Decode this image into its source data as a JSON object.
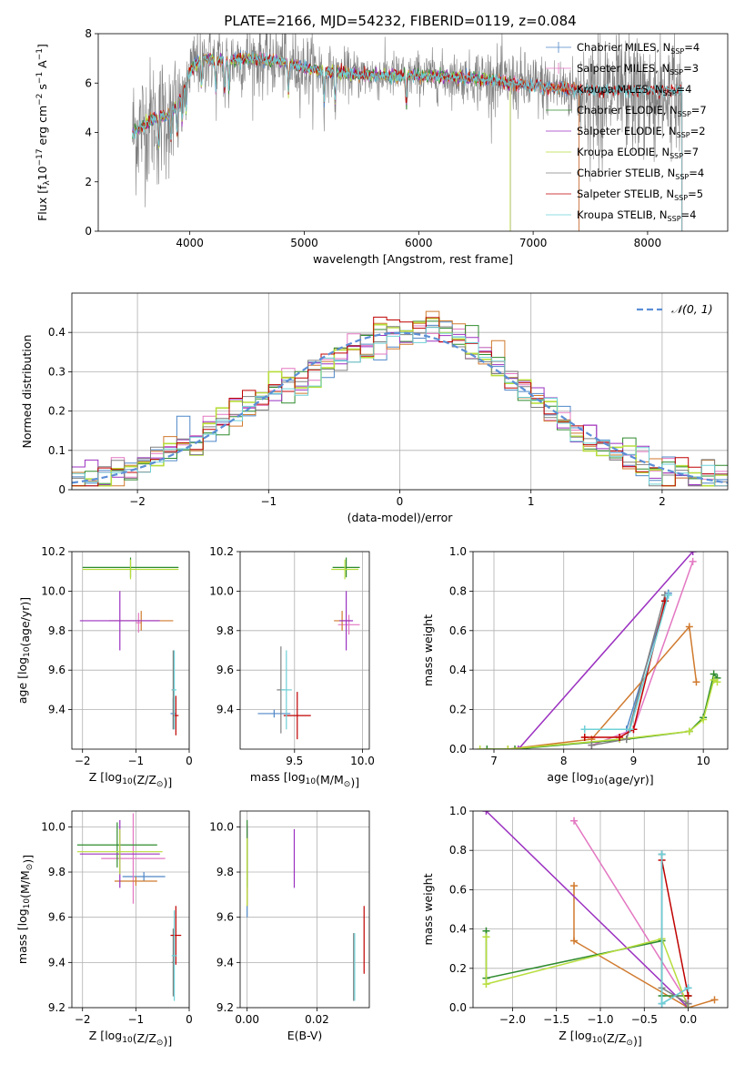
{
  "figure": {
    "title": "PLATE=2166, MJD=54232, FIBERID=0119, z=0.084"
  },
  "colors": {
    "chabrier_miles": "#4f87c7",
    "salpeter_miles": "#e377c2",
    "kroupa_miles": "#d07a2e",
    "chabrier_elodie": "#2e8b2e",
    "salpeter_elodie": "#9b30c0",
    "kroupa_elodie": "#b7dd3c",
    "chabrier_stelib": "#808080",
    "salpeter_stelib": "#c00000",
    "kroupa_stelib": "#6ed0d6",
    "normal": "#5b8ed6"
  },
  "chart_data": [
    {
      "type": "line",
      "xlabel": "wavelength [Angstrom, rest frame]",
      "ylabel": "Flux [f_λ 10^-17 erg cm^-2 s^-1 A^-1]",
      "xlim": [
        3200,
        8700
      ],
      "ylim": [
        0,
        8
      ],
      "xticks": [
        4000,
        5000,
        6000,
        7000,
        8000
      ],
      "yticks": [
        0,
        2,
        4,
        6,
        8
      ],
      "grid": false,
      "legend_position": "top-right",
      "series": [
        {
          "name": "Chabrier MILES, N_SSP=4",
          "key": "chabrier_miles"
        },
        {
          "name": "Salpeter MILES, N_SSP=3",
          "key": "salpeter_miles"
        },
        {
          "name": "Kroupa MILES, N_SSP=4",
          "key": "kroupa_miles"
        },
        {
          "name": "Chabrier ELODIE, N_SSP=7",
          "key": "chabrier_elodie"
        },
        {
          "name": "Salpeter ELODIE, N_SSP=2",
          "key": "salpeter_elodie"
        },
        {
          "name": "Kroupa ELODIE, N_SSP=7",
          "key": "kroupa_elodie"
        },
        {
          "name": "Chabrier STELIB, N_SSP=4",
          "key": "chabrier_stelib"
        },
        {
          "name": "Salpeter STELIB, N_SSP=5",
          "key": "salpeter_stelib"
        },
        {
          "name": "Kroupa STELIB, N_SSP=4",
          "key": "kroupa_stelib"
        }
      ],
      "continuum": {
        "x": [
          3500,
          3600,
          3700,
          3800,
          3900,
          4000,
          4100,
          4300,
          4500,
          4800,
          5000,
          5300,
          5600,
          6000,
          6500,
          7000,
          7400
        ],
        "y": [
          4.0,
          4.3,
          4.6,
          4.7,
          5.2,
          6.5,
          7.0,
          6.9,
          7.0,
          6.9,
          6.6,
          6.4,
          6.3,
          6.3,
          6.2,
          5.9,
          5.7
        ]
      },
      "model_ranges": {
        "elodie": [
          3500,
          6800
        ],
        "miles": [
          3500,
          7400
        ],
        "stelib": [
          3500,
          8300
        ]
      }
    },
    {
      "type": "line",
      "xlabel": "(data-model)/error",
      "ylabel": "Normed distribution",
      "xlim": [
        -2.5,
        2.5
      ],
      "ylim": [
        0,
        0.5
      ],
      "xticks": [
        -2,
        -1,
        0,
        1,
        2
      ],
      "yticks": [
        0.0,
        0.1,
        0.2,
        0.3,
        0.4
      ],
      "grid": true,
      "legend_position": "top-right",
      "legend_label": "𝒩(0, 1)",
      "histogram_bins": [
        -2.5,
        2.5,
        0.1
      ]
    },
    {
      "type": "scatter",
      "xlabel": "Z [log10(Z/Z⊙)]",
      "ylabel": "age  [log10(age/yr)]",
      "xlim": [
        -2.2,
        0.0
      ],
      "ylim": [
        9.2,
        10.2
      ],
      "xticks": [
        -2,
        -1,
        0
      ],
      "yticks": [
        9.4,
        9.6,
        9.8,
        10.0,
        10.2
      ],
      "grid": true,
      "points": [
        {
          "key": "chabrier_miles",
          "x": -0.3,
          "y": 9.38,
          "xerr": 0.05,
          "yerr": 0.08
        },
        {
          "key": "salpeter_miles",
          "x": -0.95,
          "y": 9.84,
          "xerr": 0.05,
          "yerr": 0.05
        },
        {
          "key": "kroupa_miles",
          "x": -0.9,
          "y": 9.85,
          "xerr": 0.6,
          "yerr": 0.05
        },
        {
          "key": "chabrier_elodie",
          "x": -1.1,
          "y": 10.12,
          "xerr": 0.9,
          "yerr": 0.05
        },
        {
          "key": "salpeter_elodie",
          "x": -1.3,
          "y": 9.85,
          "xerr": 0.75,
          "yerr": 0.15
        },
        {
          "key": "kroupa_elodie",
          "x": -1.1,
          "y": 10.11,
          "xerr": 0.9,
          "yerr": 0.05
        },
        {
          "key": "chabrier_stelib",
          "x": -0.3,
          "y": 9.5,
          "xerr": 0.03,
          "yerr": 0.2
        },
        {
          "key": "salpeter_stelib",
          "x": -0.25,
          "y": 9.37,
          "xerr": 0.05,
          "yerr": 0.1
        },
        {
          "key": "kroupa_stelib",
          "x": -0.28,
          "y": 9.5,
          "xerr": 0.04,
          "yerr": 0.2
        }
      ]
    },
    {
      "type": "scatter",
      "xlabel": "mass [log10(M/M⊙)]",
      "ylabel": "",
      "xlim": [
        9.1,
        10.05
      ],
      "ylim": [
        9.2,
        10.2
      ],
      "xticks": [
        9.5,
        10.0
      ],
      "yticks": [
        9.4,
        9.6,
        9.8,
        10.0,
        10.2
      ],
      "grid": true,
      "points": [
        {
          "key": "chabrier_miles",
          "x": 9.35,
          "y": 9.38,
          "xerr": 0.12,
          "yerr": 0.02
        },
        {
          "key": "salpeter_miles",
          "x": 9.9,
          "y": 9.83,
          "xerr": 0.08,
          "yerr": 0.05
        },
        {
          "key": "kroupa_miles",
          "x": 9.85,
          "y": 9.85,
          "xerr": 0.06,
          "yerr": 0.05
        },
        {
          "key": "chabrier_elodie",
          "x": 9.88,
          "y": 10.12,
          "xerr": 0.1,
          "yerr": 0.05
        },
        {
          "key": "salpeter_elodie",
          "x": 9.88,
          "y": 9.85,
          "xerr": 0.05,
          "yerr": 0.15
        },
        {
          "key": "kroupa_elodie",
          "x": 9.87,
          "y": 10.11,
          "xerr": 0.1,
          "yerr": 0.05
        },
        {
          "key": "chabrier_stelib",
          "x": 9.4,
          "y": 9.5,
          "xerr": 0.03,
          "yerr": 0.22
        },
        {
          "key": "salpeter_stelib",
          "x": 9.52,
          "y": 9.37,
          "xerr": 0.1,
          "yerr": 0.12
        },
        {
          "key": "kroupa_stelib",
          "x": 9.44,
          "y": 9.5,
          "xerr": 0.04,
          "yerr": 0.2
        }
      ]
    },
    {
      "type": "line",
      "xlabel": "age  [log10(age/yr)]",
      "ylabel": "mass weight",
      "xlim": [
        6.7,
        10.35
      ],
      "ylim": [
        0,
        1.0
      ],
      "xticks": [
        7,
        8,
        9,
        10
      ],
      "yticks": [
        0.0,
        0.2,
        0.4,
        0.6,
        0.8,
        1.0
      ],
      "grid": true,
      "series": [
        {
          "key": "chabrier_miles",
          "x": [
            8.3,
            8.9,
            9.5
          ],
          "y": [
            0.1,
            0.1,
            0.79
          ]
        },
        {
          "key": "salpeter_miles",
          "x": [
            8.4,
            9.0,
            9.85
          ],
          "y": [
            0.02,
            0.1,
            0.95
          ]
        },
        {
          "key": "kroupa_miles",
          "x": [
            7.2,
            8.4,
            9.8,
            9.9
          ],
          "y": [
            0.0,
            0.05,
            0.62,
            0.34
          ]
        },
        {
          "key": "chabrier_elodie",
          "x": [
            6.9,
            7.3,
            8.9,
            9.8,
            10.0,
            10.15,
            10.2
          ],
          "y": [
            0.0,
            0.0,
            0.05,
            0.09,
            0.16,
            0.38,
            0.36
          ]
        },
        {
          "key": "salpeter_elodie",
          "x": [
            7.35,
            9.85
          ],
          "y": [
            0.0,
            1.0
          ]
        },
        {
          "key": "kroupa_elodie",
          "x": [
            6.8,
            7.2,
            8.8,
            9.8,
            10.0,
            10.15,
            10.2
          ],
          "y": [
            0.0,
            0.0,
            0.05,
            0.09,
            0.15,
            0.35,
            0.34
          ]
        },
        {
          "key": "chabrier_stelib",
          "x": [
            8.4,
            8.9,
            9.45
          ],
          "y": [
            0.02,
            0.05,
            0.78
          ]
        },
        {
          "key": "salpeter_stelib",
          "x": [
            8.3,
            8.8,
            9.0,
            9.45
          ],
          "y": [
            0.06,
            0.06,
            0.1,
            0.75
          ]
        },
        {
          "key": "kroupa_stelib",
          "x": [
            8.3,
            8.95,
            9.5
          ],
          "y": [
            0.1,
            0.1,
            0.78
          ]
        }
      ]
    },
    {
      "type": "scatter",
      "xlabel": "Z [log10(Z/Z⊙)]",
      "ylabel": "mass [log10(M/M⊙)]",
      "xlim": [
        -2.2,
        0.0
      ],
      "ylim": [
        9.2,
        10.07
      ],
      "xticks": [
        -2,
        -1,
        0
      ],
      "yticks": [
        9.2,
        9.4,
        9.6,
        9.8,
        10.0
      ],
      "grid": true,
      "points": [
        {
          "key": "chabrier_miles",
          "x": -0.85,
          "y": 9.78,
          "xerr": 0.4,
          "yerr": 0.02
        },
        {
          "key": "salpeter_miles",
          "x": -1.05,
          "y": 9.86,
          "xerr": 0.6,
          "yerr": 0.2
        },
        {
          "key": "kroupa_miles",
          "x": -1.0,
          "y": 9.76,
          "xerr": 0.4,
          "yerr": 0.02
        },
        {
          "key": "chabrier_elodie",
          "x": -1.35,
          "y": 9.92,
          "xerr": 0.75,
          "yerr": 0.1
        },
        {
          "key": "salpeter_elodie",
          "x": -1.3,
          "y": 9.88,
          "xerr": 0.75,
          "yerr": 0.15
        },
        {
          "key": "kroupa_elodie",
          "x": -1.3,
          "y": 9.89,
          "xerr": 0.8,
          "yerr": 0.1
        },
        {
          "key": "chabrier_stelib",
          "x": -0.3,
          "y": 9.4,
          "xerr": 0.03,
          "yerr": 0.15
        },
        {
          "key": "salpeter_stelib",
          "x": -0.25,
          "y": 9.52,
          "xerr": 0.1,
          "yerr": 0.13
        },
        {
          "key": "kroupa_stelib",
          "x": -0.28,
          "y": 9.43,
          "xerr": 0.05,
          "yerr": 0.2
        }
      ]
    },
    {
      "type": "scatter",
      "xlabel": "E(B-V)",
      "ylabel": "",
      "xlim": [
        -0.002,
        0.035
      ],
      "ylim": [
        9.2,
        10.07
      ],
      "xticks": [
        0.0,
        0.02
      ],
      "yticks": [
        9.2,
        9.4,
        9.6,
        9.8,
        10.0
      ],
      "grid": true,
      "points": [
        {
          "key": "chabrier_miles",
          "x": 0.0,
          "y": 9.8,
          "xerr": 0.0,
          "yerr": 0.2
        },
        {
          "key": "salpeter_miles",
          "x": 0.0,
          "y": 9.86,
          "xerr": 0.0,
          "yerr": 0.15
        },
        {
          "key": "kroupa_miles",
          "x": 0.0,
          "y": 9.8,
          "xerr": 0.0,
          "yerr": 0.15
        },
        {
          "key": "chabrier_elodie",
          "x": 0.0,
          "y": 9.88,
          "xerr": 0.0,
          "yerr": 0.15
        },
        {
          "key": "salpeter_elodie",
          "x": 0.0135,
          "y": 9.86,
          "xerr": 0.0,
          "yerr": 0.13
        },
        {
          "key": "kroupa_elodie",
          "x": 0.0,
          "y": 9.8,
          "xerr": 0.0,
          "yerr": 0.15
        },
        {
          "key": "chabrier_stelib",
          "x": 0.0305,
          "y": 9.38,
          "xerr": 0.0,
          "yerr": 0.15
        },
        {
          "key": "salpeter_stelib",
          "x": 0.0335,
          "y": 9.5,
          "xerr": 0.0,
          "yerr": 0.15
        },
        {
          "key": "kroupa_stelib",
          "x": 0.0308,
          "y": 9.38,
          "xerr": 0.0,
          "yerr": 0.15
        }
      ]
    },
    {
      "type": "line",
      "xlabel": "Z [log10(Z/Z⊙)]",
      "ylabel": "mass weight",
      "xlim": [
        -2.45,
        0.45
      ],
      "ylim": [
        0,
        1.0
      ],
      "xticks": [
        -2.0,
        -1.5,
        -1.0,
        -0.5,
        0.0
      ],
      "yticks": [
        0.0,
        0.2,
        0.4,
        0.6,
        0.8,
        1.0
      ],
      "grid": true,
      "series": [
        {
          "key": "chabrier_miles",
          "x": [
            -0.3,
            -0.3,
            0.0
          ],
          "y": [
            0.78,
            0.02,
            0.1
          ]
        },
        {
          "key": "salpeter_miles",
          "x": [
            -1.3,
            0.0
          ],
          "y": [
            0.95,
            0.02
          ]
        },
        {
          "key": "kroupa_miles",
          "x": [
            -1.3,
            -1.3,
            0.0,
            0.3
          ],
          "y": [
            0.62,
            0.34,
            0.0,
            0.04
          ]
        },
        {
          "key": "chabrier_elodie",
          "x": [
            -2.3,
            -2.3,
            -0.3,
            -0.3,
            0.0
          ],
          "y": [
            0.39,
            0.15,
            0.34,
            0.06,
            0.06
          ]
        },
        {
          "key": "salpeter_elodie",
          "x": [
            -2.3,
            0.0
          ],
          "y": [
            1.0,
            0.0
          ]
        },
        {
          "key": "kroupa_elodie",
          "x": [
            -2.3,
            -2.3,
            -0.3,
            0.0
          ],
          "y": [
            0.36,
            0.12,
            0.35,
            0.0
          ]
        },
        {
          "key": "chabrier_stelib",
          "x": [
            -0.3,
            -0.3,
            0.0
          ],
          "y": [
            0.78,
            0.1,
            0.02
          ]
        },
        {
          "key": "salpeter_stelib",
          "x": [
            -0.3,
            0.0
          ],
          "y": [
            0.75,
            0.06
          ]
        },
        {
          "key": "kroupa_stelib",
          "x": [
            -0.3,
            -0.3,
            0.0
          ],
          "y": [
            0.78,
            0.02,
            0.1
          ]
        }
      ]
    }
  ]
}
